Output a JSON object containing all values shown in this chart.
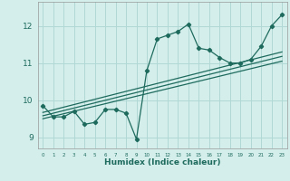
{
  "title": "",
  "xlabel": "Humidex (Indice chaleur)",
  "bg_color": "#d4eeeb",
  "grid_color": "#b0d8d4",
  "line_color": "#1e6b5e",
  "xlim": [
    -0.5,
    23.5
  ],
  "ylim": [
    8.7,
    12.65
  ],
  "xticks": [
    0,
    1,
    2,
    3,
    4,
    5,
    6,
    7,
    8,
    9,
    10,
    11,
    12,
    13,
    14,
    15,
    16,
    17,
    18,
    19,
    20,
    21,
    22,
    23
  ],
  "yticks": [
    9,
    10,
    11,
    12
  ],
  "data_x": [
    0,
    1,
    2,
    3,
    4,
    5,
    6,
    7,
    8,
    9,
    10,
    11,
    12,
    13,
    14,
    15,
    16,
    17,
    18,
    19,
    20,
    21,
    22,
    23
  ],
  "data_y": [
    9.85,
    9.55,
    9.55,
    9.7,
    9.35,
    9.4,
    9.75,
    9.75,
    9.65,
    8.95,
    10.8,
    11.65,
    11.75,
    11.85,
    12.05,
    11.4,
    11.35,
    11.15,
    11.0,
    11.0,
    11.1,
    11.45,
    12.0,
    12.3
  ],
  "trend1_x": [
    0,
    23
  ],
  "trend1_y": [
    9.5,
    11.05
  ],
  "trend2_x": [
    0,
    23
  ],
  "trend2_y": [
    9.58,
    11.18
  ],
  "trend3_x": [
    0,
    23
  ],
  "trend3_y": [
    9.67,
    11.3
  ]
}
